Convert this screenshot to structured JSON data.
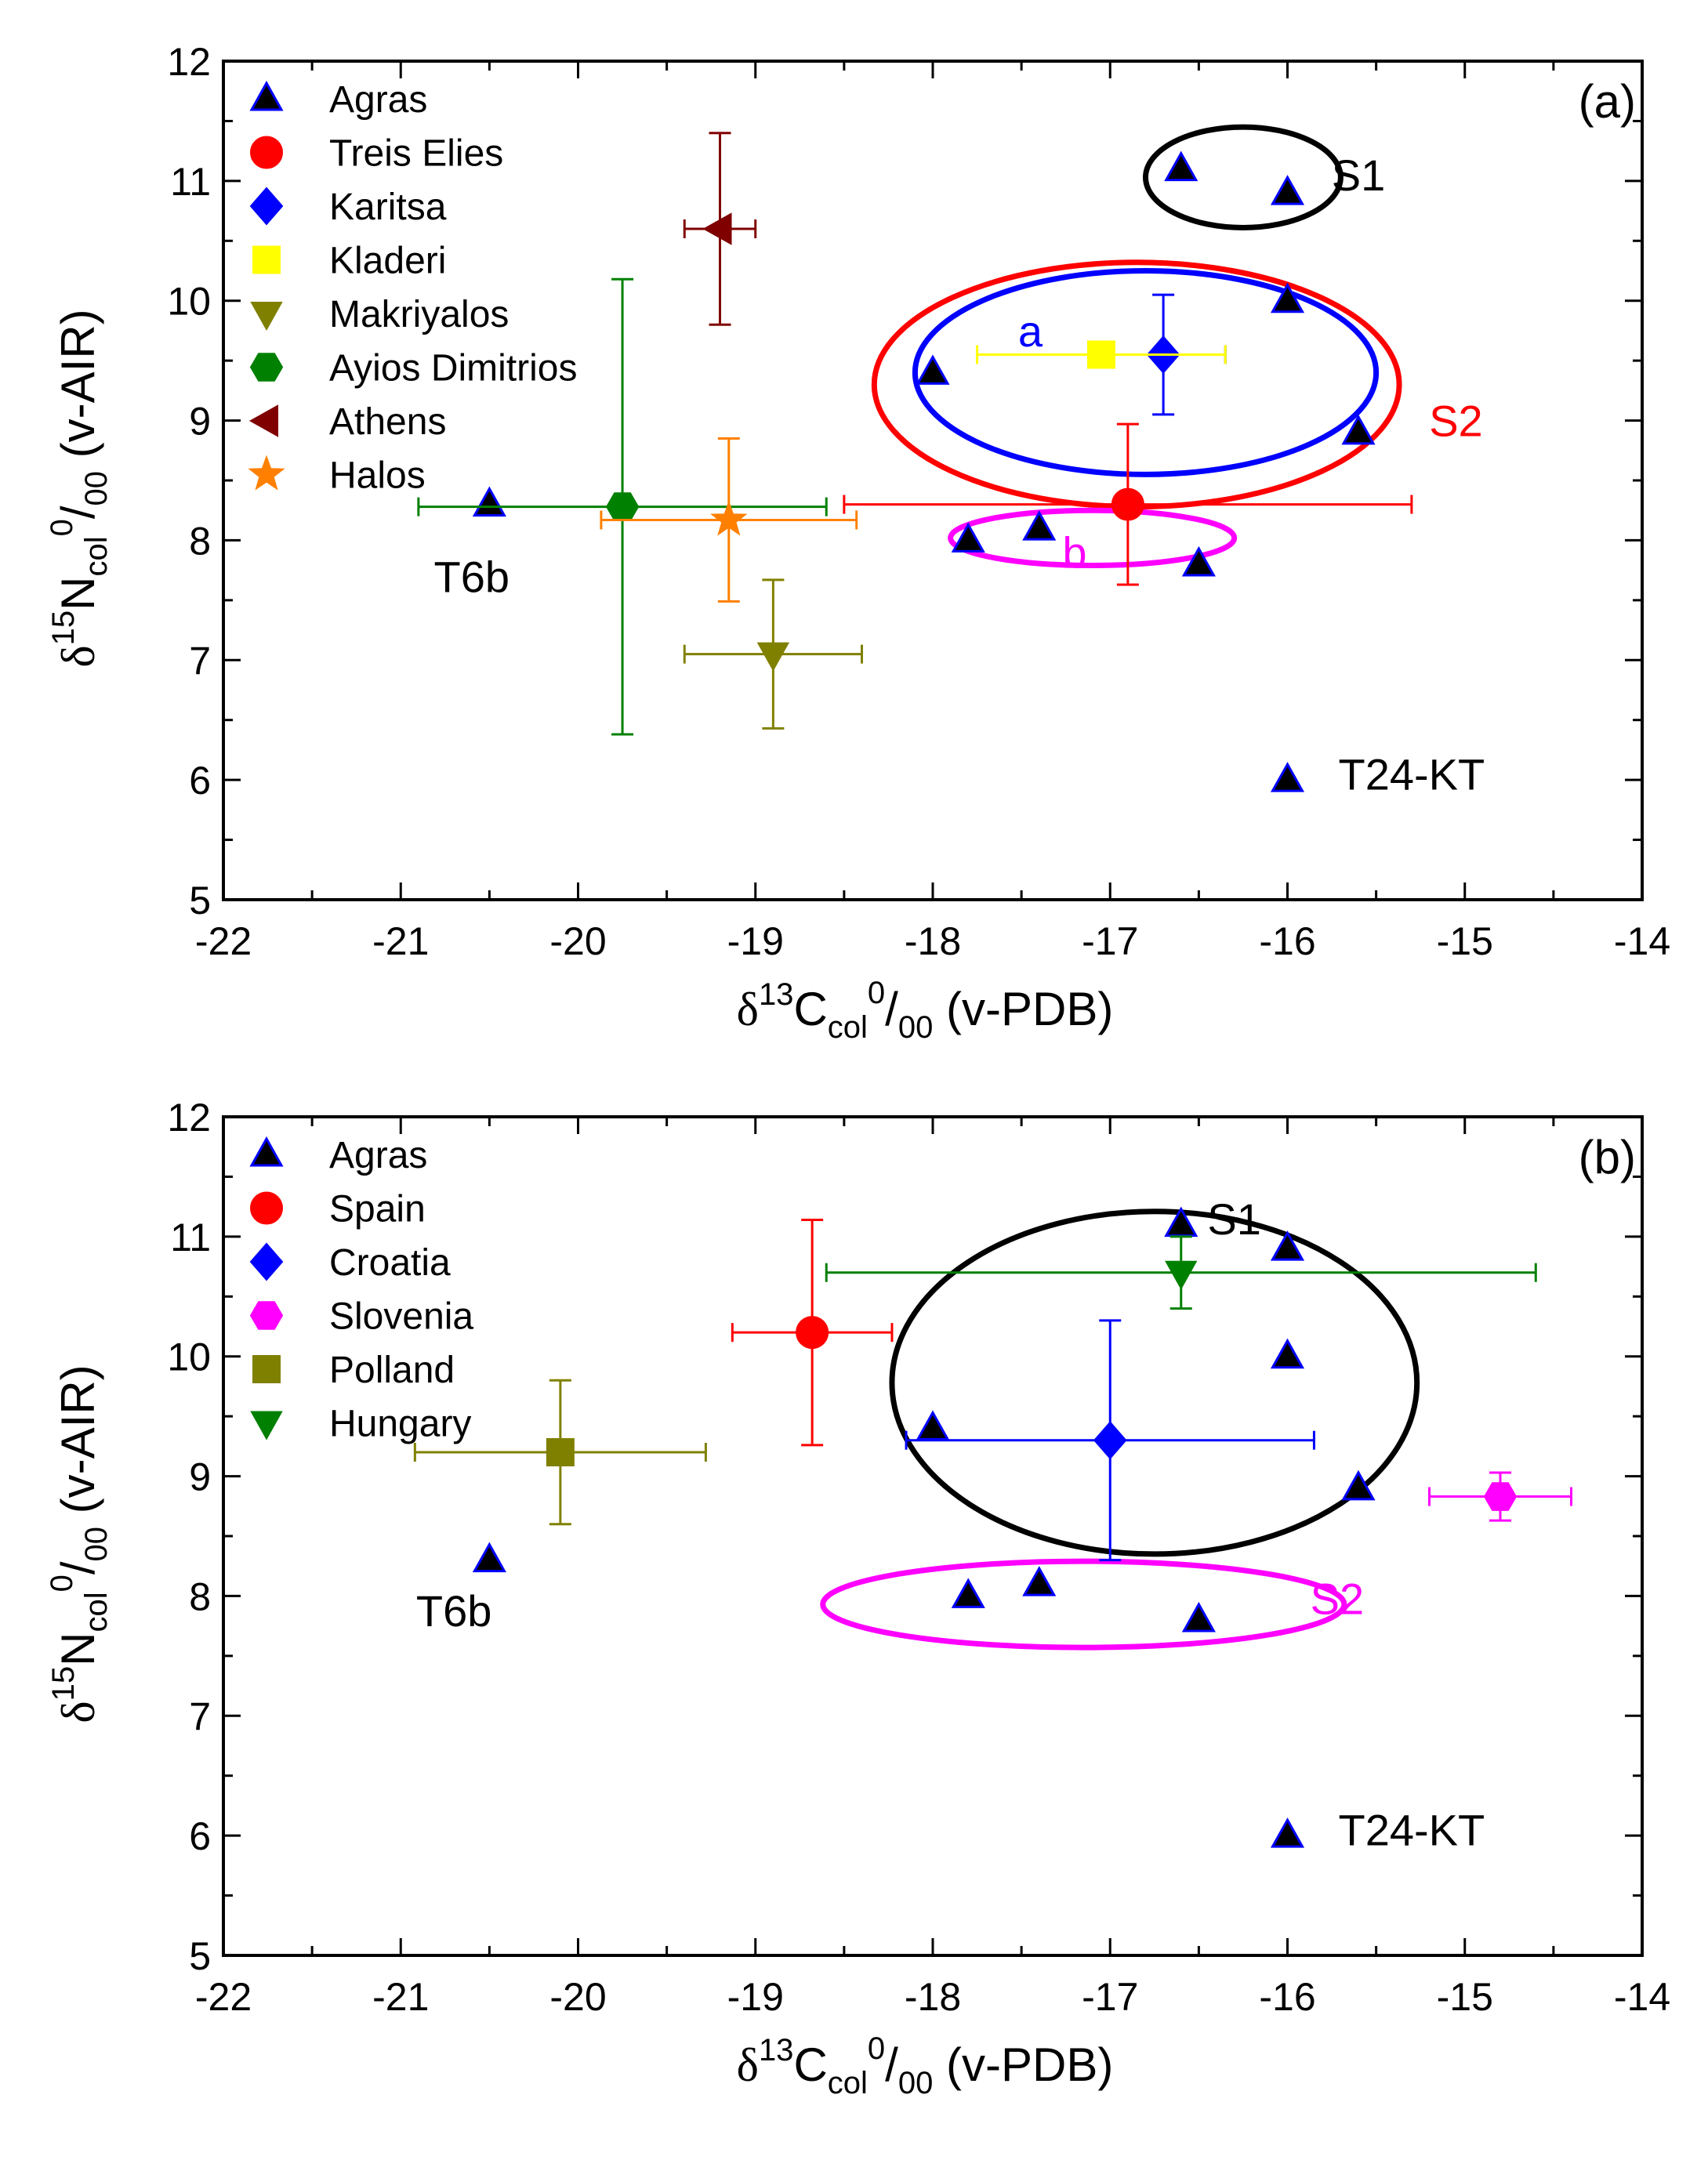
{
  "chart_data": [
    {
      "type": "scatter",
      "panel_label": "(a)",
      "xlim": [
        -22,
        -14
      ],
      "ylim": [
        5,
        12
      ],
      "xticks": [
        -22,
        -21,
        -20,
        -19,
        -18,
        -17,
        -16,
        -15,
        -14
      ],
      "yticks": [
        5,
        6,
        7,
        8,
        9,
        10,
        11,
        12
      ],
      "xlabel": {
        "pre": "δ",
        "sup1": "13",
        "main": "C",
        "sub": "col",
        "sup2": "0",
        "post": "/",
        "sub2": "00",
        "tail": " (v-PDB)"
      },
      "ylabel": {
        "pre": "δ",
        "sup1": "15",
        "main": "N",
        "sub": "col",
        "sup2": "0",
        "post": "/",
        "sub2": "00",
        "tail": " (v-AIR)"
      },
      "legend_position": "top-left",
      "series": [
        {
          "name": "Agras",
          "marker": "triangle-up",
          "color": "#000000",
          "edge": "#0000ff",
          "points": [
            [
              -16.6,
              11.1
            ],
            [
              -16.0,
              10.9
            ],
            [
              -16.0,
              10.0
            ],
            [
              -18.0,
              9.4
            ],
            [
              -15.6,
              8.9
            ],
            [
              -17.4,
              8.1
            ],
            [
              -17.8,
              8.0
            ],
            [
              -16.5,
              7.8
            ],
            [
              -20.5,
              8.3
            ],
            [
              -16.0,
              6.0
            ]
          ]
        },
        {
          "name": "Treis Elies",
          "marker": "circle",
          "color": "#ff0000",
          "points": [
            [
              -16.9,
              8.3
            ]
          ],
          "xerr": [
            1.6
          ],
          "yerr": [
            0.67
          ]
        },
        {
          "name": "Karitsa",
          "marker": "diamond",
          "color": "#0000ff",
          "points": [
            [
              -16.7,
              9.55
            ]
          ],
          "xerr": [
            0.35
          ],
          "yerr": [
            0.5
          ]
        },
        {
          "name": "Kladeri",
          "marker": "square",
          "color": "#ffff00",
          "points": [
            [
              -17.05,
              9.55
            ]
          ],
          "xerr": [
            0.7
          ],
          "yerr": [
            0
          ]
        },
        {
          "name": "Makriyalos",
          "marker": "triangle-down",
          "color": "#808000",
          "points": [
            [
              -18.9,
              7.05
            ]
          ],
          "xerr": [
            0.5
          ],
          "yerr": [
            0.62
          ]
        },
        {
          "name": "Ayios Dimitrios",
          "marker": "hexagon",
          "color": "#008000",
          "points": [
            [
              -19.75,
              8.28
            ]
          ],
          "xerr": [
            1.15
          ],
          "yerr": [
            1.9
          ]
        },
        {
          "name": "Athens",
          "marker": "triangle-left",
          "color": "#800000",
          "points": [
            [
              -19.2,
              10.6
            ]
          ],
          "xerr": [
            0.2
          ],
          "yerr": [
            0.8
          ]
        },
        {
          "name": "Halos",
          "marker": "star",
          "color": "#ff8000",
          "points": [
            [
              -19.15,
              8.17
            ]
          ],
          "xerr": [
            0.72
          ],
          "yerr": [
            0.68
          ]
        }
      ],
      "annotations": [
        {
          "text": "S1",
          "x": -15.6,
          "y": 11.05,
          "color": "#000000"
        },
        {
          "text": "S2",
          "x": -15.05,
          "y": 9.0,
          "color": "#ff0000"
        },
        {
          "text": "a",
          "x": -17.45,
          "y": 9.75,
          "color": "#0000ff"
        },
        {
          "text": "b",
          "x": -17.2,
          "y": 7.9,
          "color": "#ff00ff"
        },
        {
          "text": "T6b",
          "x": -20.6,
          "y": 7.7,
          "color": "#000000"
        },
        {
          "text": "T24-KT",
          "x": -15.3,
          "y": 6.05,
          "color": "#000000"
        }
      ],
      "ellipses": [
        {
          "label": "S1",
          "color": "#000000",
          "cx": -16.25,
          "cy": 11.03,
          "rx": 0.55,
          "ry": 0.42
        },
        {
          "label": "S2",
          "color": "#ff0000",
          "cx": -16.85,
          "cy": 9.3,
          "rx": 1.48,
          "ry": 1.02
        },
        {
          "label": "a",
          "color": "#0000ff",
          "cx": -16.8,
          "cy": 9.4,
          "rx": 1.3,
          "ry": 0.85
        },
        {
          "label": "b",
          "color": "#ff00ff",
          "cx": -17.1,
          "cy": 8.02,
          "rx": 0.8,
          "ry": 0.23
        }
      ]
    },
    {
      "type": "scatter",
      "panel_label": "(b)",
      "xlim": [
        -22,
        -14
      ],
      "ylim": [
        5,
        12
      ],
      "xticks": [
        -22,
        -21,
        -20,
        -19,
        -18,
        -17,
        -16,
        -15,
        -14
      ],
      "yticks": [
        5,
        6,
        7,
        8,
        9,
        10,
        11,
        12
      ],
      "xlabel": {
        "pre": "δ",
        "sup1": "13",
        "main": "C",
        "sub": "col",
        "sup2": "0",
        "post": "/",
        "sub2": "00",
        "tail": " (v-PDB)"
      },
      "ylabel": {
        "pre": "δ",
        "sup1": "15",
        "main": "N",
        "sub": "col",
        "sup2": "0",
        "post": "/",
        "sub2": "00",
        "tail": " (v-AIR)"
      },
      "legend_position": "top-left",
      "series": [
        {
          "name": "Agras",
          "marker": "triangle-up",
          "color": "#000000",
          "edge": "#0000ff",
          "points": [
            [
              -16.6,
              11.1
            ],
            [
              -16.0,
              10.9
            ],
            [
              -16.0,
              10.0
            ],
            [
              -18.0,
              9.4
            ],
            [
              -15.6,
              8.9
            ],
            [
              -17.4,
              8.1
            ],
            [
              -17.8,
              8.0
            ],
            [
              -16.5,
              7.8
            ],
            [
              -20.5,
              8.3
            ],
            [
              -16.0,
              6.0
            ]
          ]
        },
        {
          "name": "Spain",
          "marker": "circle",
          "color": "#ff0000",
          "points": [
            [
              -18.68,
              10.2
            ]
          ],
          "xerr": [
            0.45
          ],
          "yerr": [
            0.94
          ]
        },
        {
          "name": "Croatia",
          "marker": "diamond",
          "color": "#0000ff",
          "points": [
            [
              -17.0,
              9.3
            ]
          ],
          "xerr": [
            1.15
          ],
          "yerr": [
            1.0
          ]
        },
        {
          "name": "Slovenia",
          "marker": "hexagon",
          "color": "#ff00ff",
          "points": [
            [
              -14.8,
              8.83
            ]
          ],
          "xerr": [
            0.4
          ],
          "yerr": [
            0.2
          ]
        },
        {
          "name": "Polland",
          "marker": "square",
          "color": "#808000",
          "points": [
            [
              -20.1,
              9.2
            ]
          ],
          "xerr": [
            0.82
          ],
          "yerr": [
            0.6
          ]
        },
        {
          "name": "Hungary",
          "marker": "triangle-down",
          "color": "#008000",
          "points": [
            [
              -16.6,
              10.7
            ]
          ],
          "xerr": [
            2.0
          ],
          "yerr": [
            0.3
          ]
        }
      ],
      "annotations": [
        {
          "text": "S1",
          "x": -16.3,
          "y": 11.15,
          "color": "#000000"
        },
        {
          "text": "S2",
          "x": -15.72,
          "y": 7.98,
          "color": "#ff00ff"
        },
        {
          "text": "T6b",
          "x": -20.7,
          "y": 7.88,
          "color": "#000000"
        },
        {
          "text": "T24-KT",
          "x": -15.3,
          "y": 6.05,
          "color": "#000000"
        }
      ],
      "ellipses": [
        {
          "label": "S1",
          "color": "#000000",
          "cx": -16.75,
          "cy": 9.78,
          "rx": 1.48,
          "ry": 1.43
        },
        {
          "label": "S2",
          "color": "#ff00ff",
          "cx": -17.15,
          "cy": 7.93,
          "rx": 1.47,
          "ry": 0.36
        }
      ]
    }
  ]
}
